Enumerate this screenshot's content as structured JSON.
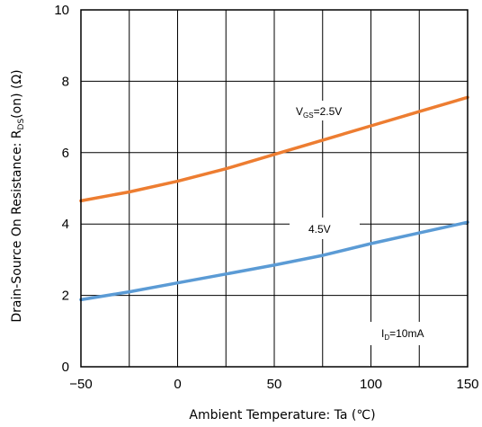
{
  "chart_data": {
    "type": "line",
    "xlabel": "Ambient Temperature: Ta (℃)",
    "ylabel_main": "Drain-Source On Resistance: R",
    "ylabel_sub": "DS",
    "ylabel_tail": "(on) (Ω)",
    "xlim": [
      -50,
      150
    ],
    "ylim": [
      0,
      10
    ],
    "xticks": [
      -50,
      0,
      50,
      100,
      150
    ],
    "yticks": [
      0,
      2,
      4,
      6,
      8,
      10
    ],
    "x_tick_labels": [
      "−50",
      "0",
      "50",
      "100",
      "150"
    ],
    "y_tick_labels": [
      "0",
      "2",
      "4",
      "6",
      "8",
      "10"
    ],
    "x_gridlines": [
      -25,
      0,
      25,
      50,
      75,
      100,
      125
    ],
    "y_gridlines": [
      2,
      4,
      6,
      8
    ],
    "grid": true,
    "series": [
      {
        "name": "V_GS=2.5V",
        "color": "#ED7D31",
        "x": [
          -50,
          -25,
          0,
          25,
          50,
          75,
          100,
          125,
          150
        ],
        "y": [
          4.65,
          4.9,
          5.2,
          5.55,
          5.95,
          6.35,
          6.75,
          7.15,
          7.55
        ]
      },
      {
        "name": "4.5V",
        "color": "#5B9BD5",
        "x": [
          -50,
          -25,
          0,
          25,
          50,
          75,
          100,
          125,
          150
        ],
        "y": [
          1.88,
          2.1,
          2.35,
          2.6,
          2.85,
          3.12,
          3.45,
          3.75,
          4.05
        ]
      }
    ],
    "annotations": {
      "vgs_main": "V",
      "vgs_sub": "GS",
      "vgs_tail": "=2.5V",
      "v45": "4.5V",
      "id_main": "I",
      "id_sub": "D",
      "id_tail": "=10mA"
    }
  }
}
